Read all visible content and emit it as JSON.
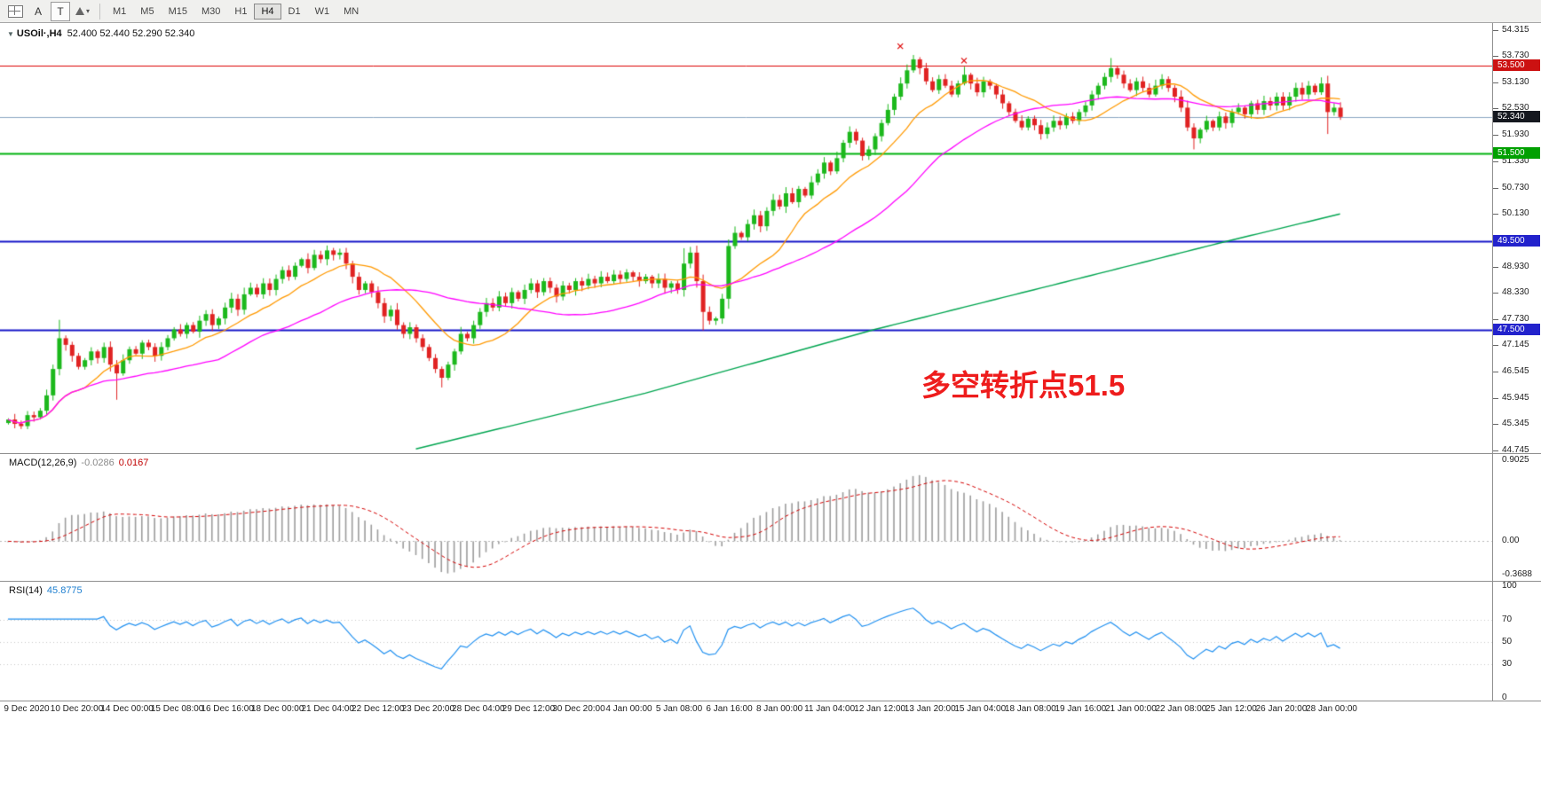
{
  "toolbar": {
    "tools": [
      {
        "name": "chart-grid",
        "label": ""
      },
      {
        "name": "arrow-tool",
        "label": "A"
      },
      {
        "name": "text-tool",
        "label": "T"
      },
      {
        "name": "shapes-tool",
        "label": ""
      }
    ],
    "timeframes": [
      "M1",
      "M5",
      "M15",
      "M30",
      "H1",
      "H4",
      "D1",
      "W1",
      "MN"
    ],
    "active_timeframe": "H4"
  },
  "chart": {
    "title": "USOil·,H4",
    "ohlc_text": "52.400 52.440 52.290 52.340",
    "annotation": {
      "text": "多空转折点51.5",
      "color": "#ee1c1c"
    },
    "price_ticks": [
      "54.315",
      "53.730",
      "53.130",
      "52.530",
      "51.930",
      "51.330",
      "50.730",
      "50.130",
      "48.930",
      "48.330",
      "47.730",
      "47.145",
      "46.545",
      "45.945",
      "45.345",
      "44.745"
    ],
    "badges": [
      {
        "value": "53.500",
        "price": 53.5,
        "bg": "#cc1111"
      },
      {
        "value": "52.340",
        "price": 52.34,
        "bg": "#15181f"
      },
      {
        "value": "51.500",
        "price": 51.5,
        "bg": "#00a000"
      },
      {
        "value": "49.500",
        "price": 49.5,
        "bg": "#2222cc"
      },
      {
        "value": "47.500",
        "price": 47.5,
        "bg": "#2222cc"
      }
    ],
    "hlines": [
      {
        "price": 53.5,
        "color": "#dd0000",
        "width": 1
      },
      {
        "price": 52.34,
        "color": "#8aa6c2",
        "width": 1
      },
      {
        "price": 51.5,
        "color": "#00b30f",
        "width": 2
      },
      {
        "price": 49.5,
        "color": "#1616c8",
        "width": 2
      },
      {
        "price": 47.5,
        "color": "#1616c8",
        "width": 2
      }
    ],
    "time_labels": [
      "9 Dec 2020",
      "10 Dec 20:00",
      "14 Dec 00:00",
      "15 Dec 08:00",
      "16 Dec 16:00",
      "18 Dec 00:00",
      "21 Dec 04:00",
      "22 Dec 12:00",
      "23 Dec 20:00",
      "28 Dec 04:00",
      "29 Dec 12:00",
      "30 Dec 20:00",
      "4 Jan 00:00",
      "5 Jan 08:00",
      "6 Jan 16:00",
      "8 Jan 00:00",
      "11 Jan 04:00",
      "12 Jan 12:00",
      "13 Jan 20:00",
      "15 Jan 04:00",
      "18 Jan 08:00",
      "19 Jan 16:00",
      "21 Jan 00:00",
      "22 Jan 08:00",
      "25 Jan 12:00",
      "26 Jan 20:00",
      "28 Jan 00:00"
    ]
  },
  "chart_data": {
    "type": "candlestick",
    "symbol": "USOil",
    "timeframe": "H4",
    "y_range": [
      44.745,
      54.315
    ],
    "closes": [
      45.45,
      45.35,
      45.3,
      45.55,
      45.5,
      45.65,
      46.0,
      46.6,
      47.3,
      47.15,
      46.9,
      46.65,
      46.8,
      47.0,
      46.85,
      47.1,
      46.7,
      46.5,
      46.8,
      47.05,
      46.95,
      47.2,
      47.1,
      46.9,
      47.1,
      47.3,
      47.5,
      47.4,
      47.6,
      47.45,
      47.7,
      47.85,
      47.6,
      47.75,
      48.0,
      48.2,
      47.95,
      48.3,
      48.45,
      48.3,
      48.55,
      48.4,
      48.65,
      48.85,
      48.7,
      48.95,
      49.1,
      48.9,
      49.2,
      49.1,
      49.3,
      49.2,
      49.25,
      49.0,
      48.7,
      48.4,
      48.55,
      48.35,
      48.1,
      47.8,
      47.95,
      47.6,
      47.4,
      47.55,
      47.3,
      47.1,
      46.85,
      46.6,
      46.4,
      46.7,
      47.0,
      47.4,
      47.3,
      47.6,
      47.9,
      48.1,
      48.0,
      48.25,
      48.1,
      48.35,
      48.2,
      48.4,
      48.55,
      48.35,
      48.6,
      48.45,
      48.25,
      48.5,
      48.4,
      48.6,
      48.5,
      48.65,
      48.55,
      48.7,
      48.6,
      48.75,
      48.65,
      48.8,
      48.7,
      48.6,
      48.7,
      48.55,
      48.65,
      48.45,
      48.55,
      48.4,
      49.0,
      49.25,
      48.6,
      47.9,
      47.7,
      47.75,
      48.2,
      49.4,
      49.7,
      49.6,
      49.9,
      50.1,
      49.85,
      50.2,
      50.45,
      50.3,
      50.6,
      50.4,
      50.7,
      50.55,
      50.85,
      51.05,
      51.3,
      51.1,
      51.4,
      51.75,
      52.0,
      51.8,
      51.45,
      51.6,
      51.9,
      52.2,
      52.5,
      52.8,
      53.1,
      53.4,
      53.65,
      53.45,
      53.15,
      52.95,
      53.2,
      53.05,
      52.85,
      53.1,
      53.3,
      53.1,
      52.9,
      53.15,
      53.05,
      52.85,
      52.65,
      52.45,
      52.25,
      52.1,
      52.3,
      52.15,
      51.95,
      52.1,
      52.25,
      52.15,
      52.35,
      52.25,
      52.45,
      52.6,
      52.85,
      53.05,
      53.25,
      53.45,
      53.3,
      53.1,
      52.95,
      53.15,
      53.0,
      52.85,
      53.05,
      53.2,
      53.0,
      52.8,
      52.55,
      52.1,
      51.85,
      52.05,
      52.25,
      52.1,
      52.35,
      52.2,
      52.45,
      52.55,
      52.4,
      52.65,
      52.5,
      52.7,
      52.6,
      52.8,
      52.6,
      52.8,
      53.0,
      52.85,
      53.05,
      52.9,
      53.1,
      52.45,
      52.55,
      52.34
    ],
    "wick_overrides": {
      "8": {
        "h": 47.72
      },
      "17": {
        "l": 45.9
      },
      "68": {
        "l": 46.18
      },
      "106": {
        "h": 49.35
      },
      "107": {
        "h": 49.38
      },
      "109": {
        "l": 47.48
      },
      "113": {
        "h": 49.55
      },
      "142": {
        "h": 53.75
      },
      "150": {
        "h": 53.48
      },
      "173": {
        "h": 53.68
      },
      "186": {
        "l": 51.6
      },
      "207": {
        "l": 51.95
      }
    },
    "candle_up_color": "#1cb81c",
    "candle_down_color": "#e02222",
    "ma": {
      "fast": {
        "period": 13,
        "color": "#ff9900"
      },
      "mid": {
        "period": 34,
        "color": "#ff00ff"
      },
      "slow_color": "#00a550",
      "slow_anchors": [
        [
          64,
          44.78
        ],
        [
          100,
          46.05
        ],
        [
          136,
          47.5
        ],
        [
          165,
          48.55
        ],
        [
          191,
          49.5
        ],
        [
          209,
          50.13
        ]
      ]
    },
    "markers": [
      {
        "index": 140,
        "price": 53.95,
        "color": "#dd0000"
      },
      {
        "index": 150,
        "price": 53.62,
        "color": "#dd0000"
      }
    ],
    "macd": {
      "label": "MACD(12,26,9)",
      "value_main": "-0.0286",
      "value_signal": "0.0167",
      "fast": 12,
      "slow": 26,
      "signal": 9,
      "scale_labels": [
        "0.9025",
        "0.00",
        "-0.3688"
      ],
      "scale_values": [
        0.9025,
        0.0,
        -0.3688
      ],
      "hist_color": "#9c9c9c",
      "signal_color": "#d40000"
    },
    "rsi": {
      "label": "RSI(14)",
      "value": "45.8775",
      "period": 14,
      "levels": [
        70,
        50,
        30
      ],
      "scale_labels": [
        "100",
        "70",
        "50",
        "30",
        "0"
      ],
      "scale_values": [
        100,
        70,
        50,
        30,
        0
      ],
      "color": "#2090f0"
    }
  }
}
